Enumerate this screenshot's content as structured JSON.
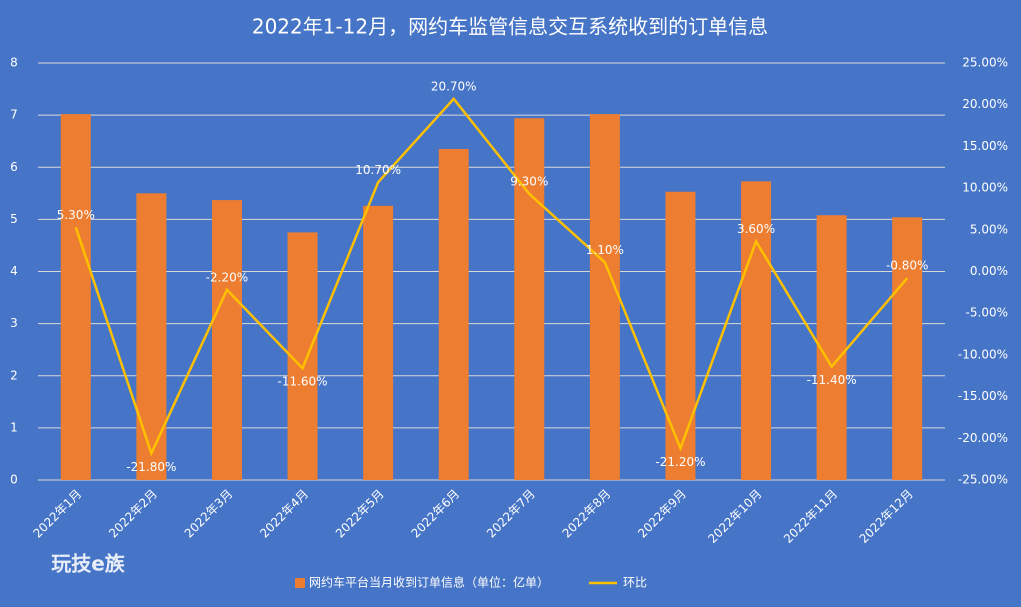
{
  "chart_data": {
    "type": "bar_line",
    "title": "2022年1-12月，网约车监管信息交互系统收到的订单信息",
    "categories": [
      "2022年1月",
      "2022年2月",
      "2022年3月",
      "2022年4月",
      "2022年5月",
      "2022年6月",
      "2022年7月",
      "2022年8月",
      "2022年9月",
      "2022年10月",
      "2022年11月",
      "2022年12月"
    ],
    "series": [
      {
        "name": "网约车平台当月收到订单信息（单位：亿单）",
        "type": "bar",
        "color": "#ed7d31",
        "values": [
          7.02,
          5.5,
          5.37,
          4.75,
          5.26,
          6.35,
          6.94,
          7.02,
          5.53,
          5.73,
          5.08,
          5.04
        ]
      },
      {
        "name": "环比",
        "type": "line",
        "axis": "y2",
        "color": "#ffc000",
        "values": [
          5.3,
          -21.8,
          -2.2,
          -11.6,
          10.7,
          20.7,
          9.3,
          1.1,
          -21.2,
          3.6,
          -11.4,
          -0.8
        ],
        "value_labels": [
          "5.30%",
          "-21.80%",
          "-2.20%",
          "-11.60%",
          "10.70%",
          "20.70%",
          "9.30%",
          "1.10%",
          "-21.20%",
          "3.60%",
          "-11.40%",
          "-0.80%"
        ]
      }
    ],
    "ylim": [
      0,
      8
    ],
    "yticks": [
      0,
      1,
      2,
      3,
      4,
      5,
      6,
      7,
      8
    ],
    "y2lim": [
      -25,
      25
    ],
    "y2ticks": [
      {
        "value": -25,
        "label": "-25.00%"
      },
      {
        "value": -20,
        "label": "-20.00%"
      },
      {
        "value": -15,
        "label": "-15.00%"
      },
      {
        "value": -10,
        "label": "-10.00%"
      },
      {
        "value": -5,
        "label": "-5.00%"
      },
      {
        "value": 0,
        "label": "0.00%"
      },
      {
        "value": 5,
        "label": "5.00%"
      },
      {
        "value": 10,
        "label": "10.00%"
      },
      {
        "value": 15,
        "label": "15.00%"
      },
      {
        "value": 20,
        "label": "20.00%"
      },
      {
        "value": 25,
        "label": "25.00%"
      }
    ],
    "grid": true,
    "legend": "bottom",
    "watermark": "玩技e族"
  }
}
